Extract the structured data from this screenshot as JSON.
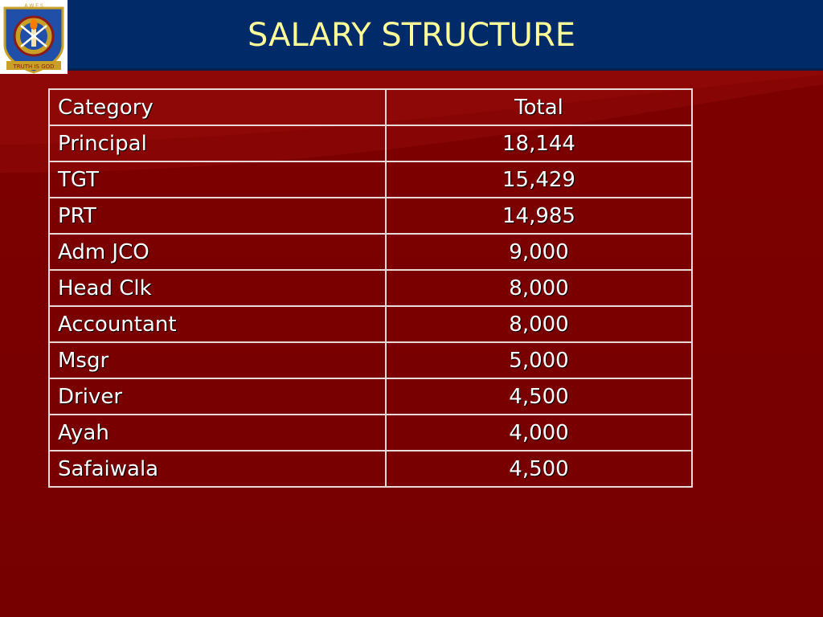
{
  "slide": {
    "title": "SALARY STRUCTURE",
    "logo": {
      "arc_text": "A W E S",
      "motto": "TRUTH IS GOD"
    }
  },
  "colors": {
    "header": "#002a68",
    "background": "#7a0000",
    "title_text": "#ffff99",
    "table_text": "#ffffff",
    "grid": "#e8d8d8"
  },
  "table": {
    "headers": {
      "category": "Category",
      "total": "Total"
    },
    "rows": [
      {
        "category": "Principal",
        "total": "18,144"
      },
      {
        "category": "TGT",
        "total": "15,429"
      },
      {
        "category": "PRT",
        "total": "14,985"
      },
      {
        "category": "Adm JCO",
        "total": "9,000"
      },
      {
        "category": "Head Clk",
        "total": "8,000"
      },
      {
        "category": "Accountant",
        "total": "8,000"
      },
      {
        "category": "Msgr",
        "total": "5,000"
      },
      {
        "category": "Driver",
        "total": "4,500"
      },
      {
        "category": "Ayah",
        "total": "4,000"
      },
      {
        "category": "Safaiwala",
        "total": "4,500"
      }
    ]
  }
}
